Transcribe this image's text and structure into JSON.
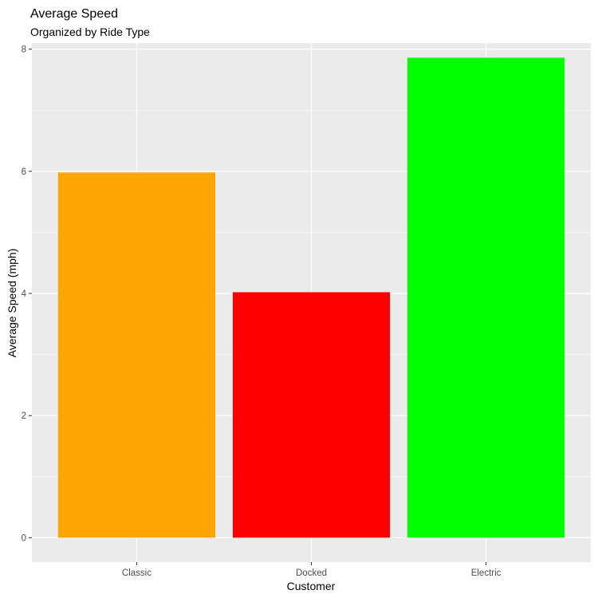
{
  "chart_data": {
    "type": "bar",
    "title": "Average Speed",
    "subtitle": "Organized by Ride Type",
    "xlabel": "Customer",
    "ylabel": "Average Speed (mph)",
    "categories": [
      "Classic",
      "Docked",
      "Electric"
    ],
    "values": [
      5.98,
      4.02,
      7.86
    ],
    "colors": [
      "#FFA500",
      "#FF0000",
      "#00FF00"
    ],
    "ylim": [
      -0.4,
      8.1
    ],
    "yticks": [
      0,
      2,
      4,
      6,
      8
    ],
    "grid": true,
    "panel_background": "#EBEBEB",
    "grid_color": "#FFFFFF",
    "legend": "none"
  }
}
